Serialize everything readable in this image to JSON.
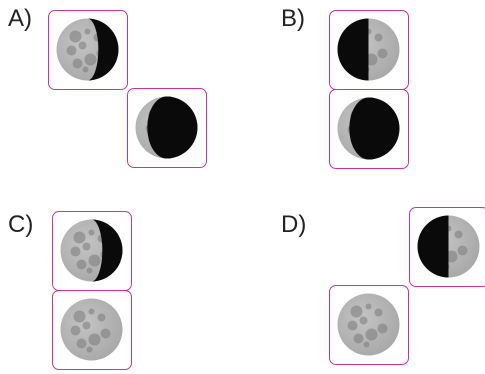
{
  "options": [
    {
      "label": "A)",
      "phases": [
        {
          "name": "waxing-gibbous",
          "lit_side": "left",
          "lit_fraction": 0.65
        },
        {
          "name": "waning-crescent",
          "lit_side": "left",
          "lit_fraction": 0.2
        }
      ]
    },
    {
      "label": "B)",
      "phases": [
        {
          "name": "first-quarter",
          "lit_side": "right",
          "lit_fraction": 0.5
        },
        {
          "name": "waning-crescent",
          "lit_side": "left",
          "lit_fraction": 0.2
        }
      ]
    },
    {
      "label": "C)",
      "phases": [
        {
          "name": "waxing-gibbous",
          "lit_side": "left",
          "lit_fraction": 0.65
        },
        {
          "name": "full-moon",
          "lit_side": "both",
          "lit_fraction": 1.0
        }
      ]
    },
    {
      "label": "D)",
      "phases": [
        {
          "name": "first-quarter",
          "lit_side": "right",
          "lit_fraction": 0.5
        },
        {
          "name": "full-moon",
          "lit_side": "both",
          "lit_fraction": 1.0
        }
      ]
    }
  ],
  "colors": {
    "frame": "#cc3399",
    "moon_lit": "#a8a8a8",
    "moon_shadow": "#0a0a0a",
    "crater": "#7a7a7a",
    "text": "#222222"
  }
}
